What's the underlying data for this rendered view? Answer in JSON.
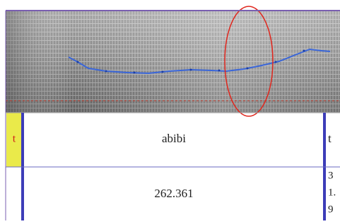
{
  "text_tier": {
    "label": "t",
    "text": "abibi",
    "next_label": "t"
  },
  "duration_row": {
    "value": "262.361",
    "next_value": [
      "3",
      "1.",
      "9"
    ]
  }
}
